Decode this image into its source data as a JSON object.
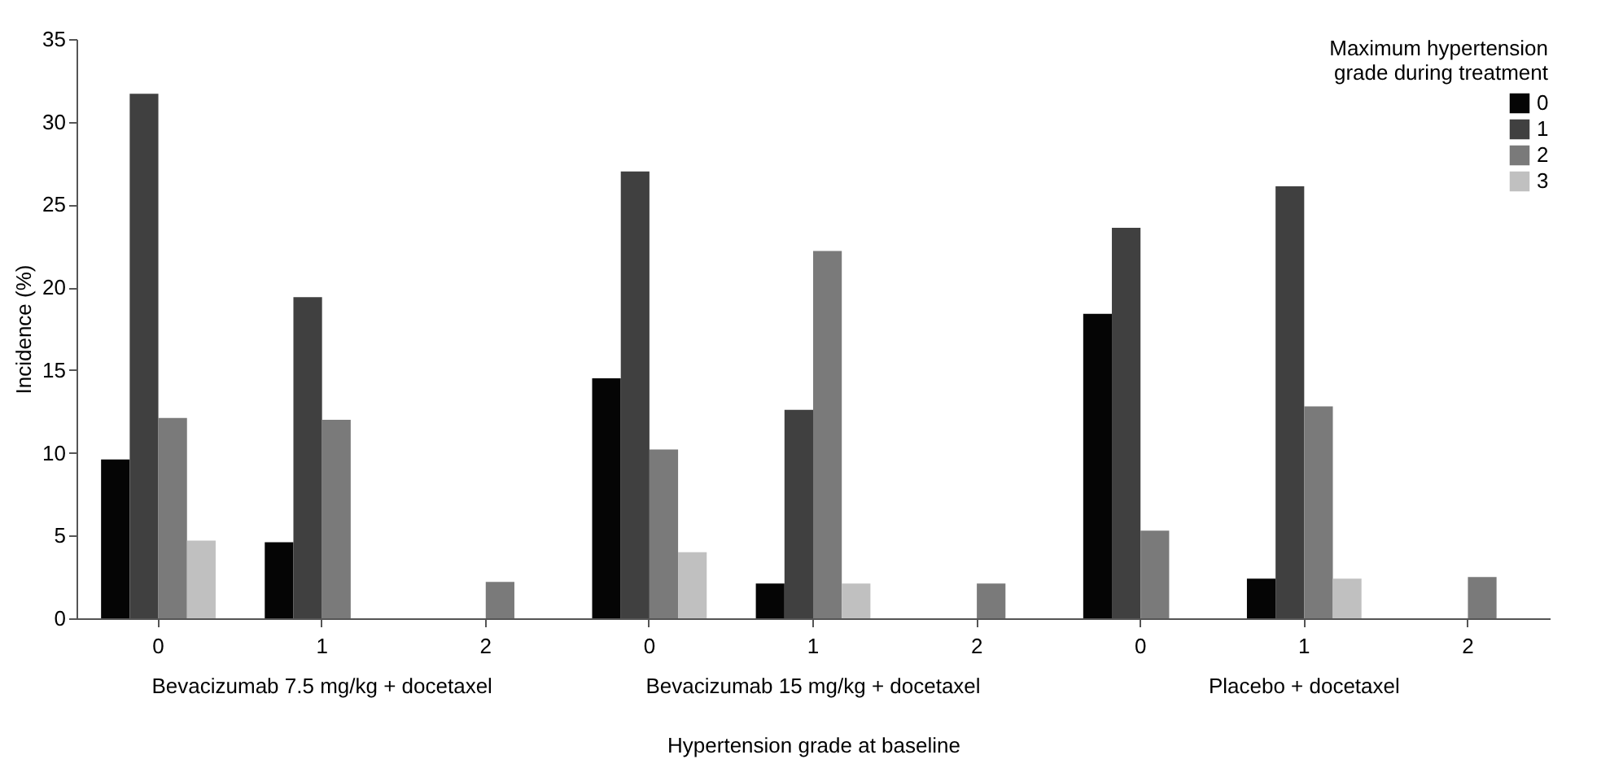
{
  "chart_data": {
    "type": "bar",
    "xlabel": "Hypertension grade at baseline",
    "ylabel": "Incidence (%)",
    "legend_title": "Maximum hypertension grade during treatment",
    "categories": [
      "0",
      "1",
      "2",
      "0",
      "1",
      "2",
      "0",
      "1",
      "2"
    ],
    "series": [
      {
        "name": "0",
        "color": "#050505",
        "values": [
          9.6,
          4.6,
          null,
          14.5,
          2.1,
          null,
          18.4,
          2.4,
          null
        ]
      },
      {
        "name": "1",
        "color": "#404040",
        "values": [
          31.7,
          19.4,
          null,
          27.0,
          12.6,
          null,
          23.6,
          26.1,
          null
        ]
      },
      {
        "name": "2",
        "color": "#7a7a7a",
        "values": [
          12.1,
          12.0,
          2.2,
          10.2,
          22.2,
          2.1,
          5.3,
          12.8,
          2.5
        ]
      },
      {
        "name": "3",
        "color": "#c0c0c0",
        "values": [
          4.7,
          null,
          null,
          4.0,
          2.1,
          null,
          null,
          2.4,
          null
        ]
      }
    ],
    "annotations": [
      "Bevacizumab 7.5 mg/kg + docetaxel",
      "Bevacizumab 15 mg/kg + docetaxel",
      "Placebo + docetaxel"
    ],
    "ylim": [
      0,
      35
    ],
    "yticks": [
      0,
      5,
      10,
      15,
      20,
      25,
      30,
      35
    ],
    "grid": false,
    "legend": "top right"
  }
}
